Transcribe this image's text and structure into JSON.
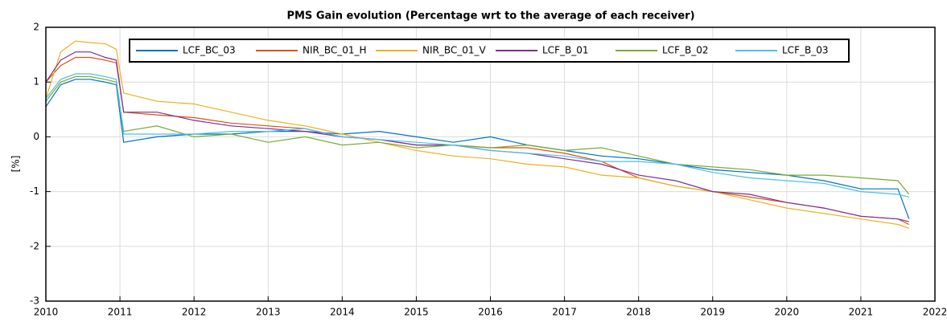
{
  "chart_data": {
    "type": "line",
    "title": "PMS Gain evolution (Percentage wrt to the average of each receiver)",
    "y_label": "[%]",
    "x": [
      2010,
      2010.2,
      2010.4,
      2010.6,
      2010.8,
      2010.95,
      2011.05,
      2011.5,
      2012,
      2012.5,
      2013,
      2013.5,
      2014,
      2014.5,
      2015,
      2015.5,
      2016,
      2016.5,
      2017,
      2017.5,
      2018,
      2018.5,
      2019,
      2019.5,
      2020,
      2020.5,
      2021,
      2021.5,
      2021.65
    ],
    "series": [
      {
        "name": "LCF_BC_03",
        "color": "#0072bd",
        "values": [
          0.55,
          0.95,
          1.05,
          1.05,
          1.0,
          0.95,
          -0.1,
          0.0,
          0.05,
          0.05,
          0.1,
          0.1,
          0.05,
          0.1,
          0.0,
          -0.1,
          0.0,
          -0.15,
          -0.25,
          -0.35,
          -0.4,
          -0.5,
          -0.6,
          -0.65,
          -0.7,
          -0.8,
          -0.95,
          -0.95,
          -1.5
        ]
      },
      {
        "name": "NIR_BC_01_H",
        "color": "#d95319",
        "values": [
          1.0,
          1.3,
          1.45,
          1.45,
          1.4,
          1.35,
          0.45,
          0.4,
          0.35,
          0.25,
          0.2,
          0.15,
          0.0,
          -0.05,
          -0.15,
          -0.15,
          -0.2,
          -0.2,
          -0.3,
          -0.45,
          -0.75,
          -0.9,
          -1.0,
          -1.1,
          -1.2,
          -1.3,
          -1.45,
          -1.5,
          -1.6
        ]
      },
      {
        "name": "NIR_BC_01_V",
        "color": "#edb120",
        "values": [
          0.7,
          1.55,
          1.75,
          1.72,
          1.7,
          1.6,
          0.8,
          0.65,
          0.6,
          0.45,
          0.3,
          0.2,
          0.05,
          -0.1,
          -0.25,
          -0.35,
          -0.4,
          -0.5,
          -0.55,
          -0.7,
          -0.75,
          -0.9,
          -1.0,
          -1.15,
          -1.3,
          -1.4,
          -1.5,
          -1.6,
          -1.67
        ]
      },
      {
        "name": "LCF_B_01",
        "color": "#7e2f8e",
        "values": [
          1.0,
          1.4,
          1.55,
          1.55,
          1.45,
          1.4,
          0.45,
          0.45,
          0.3,
          0.2,
          0.15,
          0.1,
          0.0,
          -0.05,
          -0.15,
          -0.15,
          -0.25,
          -0.3,
          -0.4,
          -0.5,
          -0.7,
          -0.8,
          -1.0,
          -1.05,
          -1.2,
          -1.3,
          -1.45,
          -1.5,
          -1.55
        ]
      },
      {
        "name": "LCF_B_02",
        "color": "#77ac30",
        "values": [
          0.65,
          1.0,
          1.1,
          1.1,
          1.05,
          1.0,
          0.1,
          0.2,
          0.0,
          0.05,
          -0.1,
          0.0,
          -0.15,
          -0.1,
          -0.2,
          -0.15,
          -0.2,
          -0.15,
          -0.25,
          -0.2,
          -0.35,
          -0.5,
          -0.55,
          -0.6,
          -0.7,
          -0.7,
          -0.75,
          -0.8,
          -1.05
        ]
      },
      {
        "name": "LCF_B_03",
        "color": "#4dbeee",
        "values": [
          0.7,
          1.05,
          1.15,
          1.15,
          1.1,
          1.05,
          0.05,
          0.05,
          0.05,
          0.1,
          0.1,
          0.15,
          0.0,
          -0.05,
          -0.1,
          -0.15,
          -0.25,
          -0.3,
          -0.35,
          -0.45,
          -0.45,
          -0.5,
          -0.65,
          -0.75,
          -0.8,
          -0.85,
          -1.0,
          -1.05,
          -1.1
        ]
      }
    ],
    "xlim": [
      2010,
      2022
    ],
    "xticks": [
      2010,
      2011,
      2012,
      2013,
      2014,
      2015,
      2016,
      2017,
      2018,
      2019,
      2020,
      2021,
      2022
    ],
    "ylim": [
      -3,
      2
    ],
    "yticks": [
      -3,
      -2,
      -1,
      0,
      1,
      2
    ],
    "grid": true,
    "legend": "top"
  }
}
